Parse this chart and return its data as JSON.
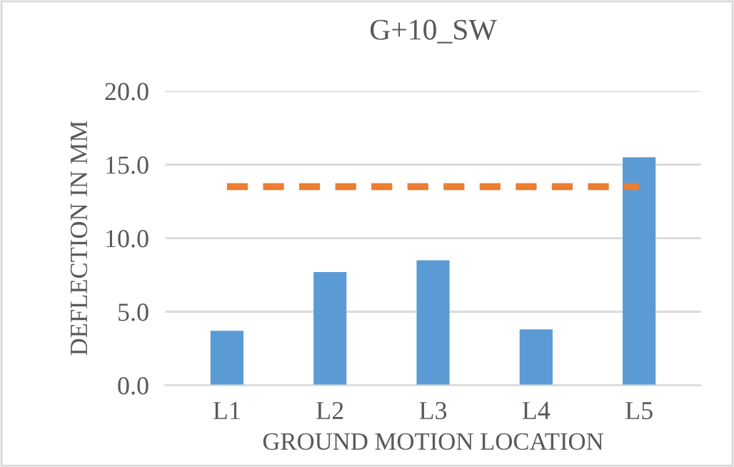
{
  "chart_data": {
    "type": "bar",
    "title": "G+10_SW",
    "xlabel": "GROUND MOTION LOCATION",
    "ylabel": "DEFLECTION IN MM",
    "categories": [
      "L1",
      "L2",
      "L3",
      "L4",
      "L5"
    ],
    "series": [
      {
        "color": "#5b9bd5",
        "values": [
          3.7,
          7.7,
          8.5,
          3.8,
          15.5
        ]
      },
      {
        "type": "line",
        "color": "#ed7d31",
        "line_style": "dashed",
        "values": [
          13.5,
          13.5,
          13.5,
          13.5,
          13.5
        ]
      }
    ],
    "ylim": [
      0,
      20
    ],
    "yticks": [
      {
        "value": 0,
        "label": "0.0"
      },
      {
        "value": 5,
        "label": "5.0"
      },
      {
        "value": 10,
        "label": "10.0"
      },
      {
        "value": 15,
        "label": "15.0"
      },
      {
        "value": 20,
        "label": "20.0"
      }
    ],
    "grid": "y"
  }
}
